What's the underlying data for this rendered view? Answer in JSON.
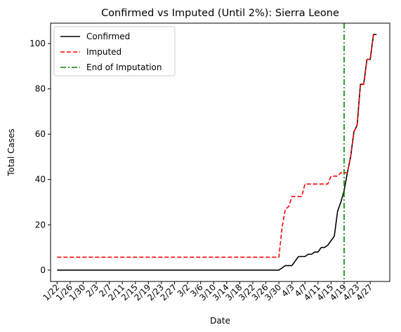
{
  "chart_data": {
    "type": "line",
    "title": "Confirmed vs Imputed (Until 2%): Sierra Leone",
    "xlabel": "Date",
    "ylabel": "Total Cases",
    "grid": false,
    "legend_placement": "top-left",
    "ylim": [
      -5,
      109
    ],
    "xlim_days": [
      -2,
      102
    ],
    "yticks": [
      0,
      20,
      40,
      60,
      80,
      100
    ],
    "xticks": [
      "1/22",
      "1/26",
      "1/30",
      "2/3",
      "2/7",
      "2/11",
      "2/15",
      "2/19",
      "2/23",
      "2/27",
      "3/2",
      "3/6",
      "3/10",
      "3/14",
      "3/18",
      "3/22",
      "3/26",
      "3/30",
      "4/3",
      "4/7",
      "4/11",
      "4/15",
      "4/19",
      "4/23",
      "4/27"
    ],
    "dates": [
      "1/22",
      "1/23",
      "1/24",
      "1/25",
      "1/26",
      "1/27",
      "1/28",
      "1/29",
      "1/30",
      "1/31",
      "2/1",
      "2/2",
      "2/3",
      "2/4",
      "2/5",
      "2/6",
      "2/7",
      "2/8",
      "2/9",
      "2/10",
      "2/11",
      "2/12",
      "2/13",
      "2/14",
      "2/15",
      "2/16",
      "2/17",
      "2/18",
      "2/19",
      "2/20",
      "2/21",
      "2/22",
      "2/23",
      "2/24",
      "2/25",
      "2/26",
      "2/27",
      "2/28",
      "2/29",
      "3/1",
      "3/2",
      "3/3",
      "3/4",
      "3/5",
      "3/6",
      "3/7",
      "3/8",
      "3/9",
      "3/10",
      "3/11",
      "3/12",
      "3/13",
      "3/14",
      "3/15",
      "3/16",
      "3/17",
      "3/18",
      "3/19",
      "3/20",
      "3/21",
      "3/22",
      "3/23",
      "3/24",
      "3/25",
      "3/26",
      "3/27",
      "3/28",
      "3/29",
      "3/30",
      "3/31",
      "4/1",
      "4/2",
      "4/3",
      "4/4",
      "4/5",
      "4/6",
      "4/7",
      "4/8",
      "4/9",
      "4/10",
      "4/11",
      "4/12",
      "4/13",
      "4/14",
      "4/15",
      "4/16",
      "4/17",
      "4/18",
      "4/19",
      "4/20",
      "4/21",
      "4/22",
      "4/23",
      "4/24",
      "4/25",
      "4/26",
      "4/27",
      "4/28",
      "4/29"
    ],
    "end_of_imputation": "4/19",
    "series": [
      {
        "name": "Confirmed",
        "color": "#000000",
        "style": "solid",
        "values": [
          0,
          0,
          0,
          0,
          0,
          0,
          0,
          0,
          0,
          0,
          0,
          0,
          0,
          0,
          0,
          0,
          0,
          0,
          0,
          0,
          0,
          0,
          0,
          0,
          0,
          0,
          0,
          0,
          0,
          0,
          0,
          0,
          0,
          0,
          0,
          0,
          0,
          0,
          0,
          0,
          0,
          0,
          0,
          0,
          0,
          0,
          0,
          0,
          0,
          0,
          0,
          0,
          0,
          0,
          0,
          0,
          0,
          0,
          0,
          0,
          0,
          0,
          0,
          0,
          0,
          0,
          0,
          0,
          0,
          1,
          2,
          2,
          2,
          4,
          6,
          6,
          6,
          7,
          7,
          8,
          8,
          10,
          10,
          11,
          13,
          15,
          26,
          30,
          35,
          43,
          50,
          61,
          64,
          82,
          82,
          93,
          93,
          104,
          104
        ]
      },
      {
        "name": "Imputed",
        "color": "#ff0000",
        "style": "dashed",
        "values": [
          5.7,
          5.7,
          5.7,
          5.7,
          5.7,
          5.7,
          5.7,
          5.7,
          5.7,
          5.7,
          5.7,
          5.7,
          5.7,
          5.7,
          5.7,
          5.7,
          5.7,
          5.7,
          5.7,
          5.7,
          5.7,
          5.7,
          5.7,
          5.7,
          5.7,
          5.7,
          5.7,
          5.7,
          5.7,
          5.7,
          5.7,
          5.7,
          5.7,
          5.7,
          5.7,
          5.7,
          5.7,
          5.7,
          5.7,
          5.7,
          5.7,
          5.7,
          5.7,
          5.7,
          5.7,
          5.7,
          5.7,
          5.7,
          5.7,
          5.7,
          5.7,
          5.7,
          5.7,
          5.7,
          5.7,
          5.7,
          5.7,
          5.7,
          5.7,
          5.7,
          5.7,
          5.7,
          5.7,
          5.7,
          5.7,
          5.7,
          5.7,
          5.7,
          5.7,
          19,
          27,
          28,
          32.5,
          32.5,
          32.5,
          32.5,
          38,
          38,
          38,
          38,
          38,
          38,
          38,
          38,
          41.5,
          41.5,
          41.5,
          43,
          43,
          43,
          50,
          61,
          64,
          82,
          82,
          93,
          93,
          104,
          104
        ]
      },
      {
        "name": "End of Imputation",
        "color": "#008000",
        "style": "dashdot"
      }
    ]
  }
}
